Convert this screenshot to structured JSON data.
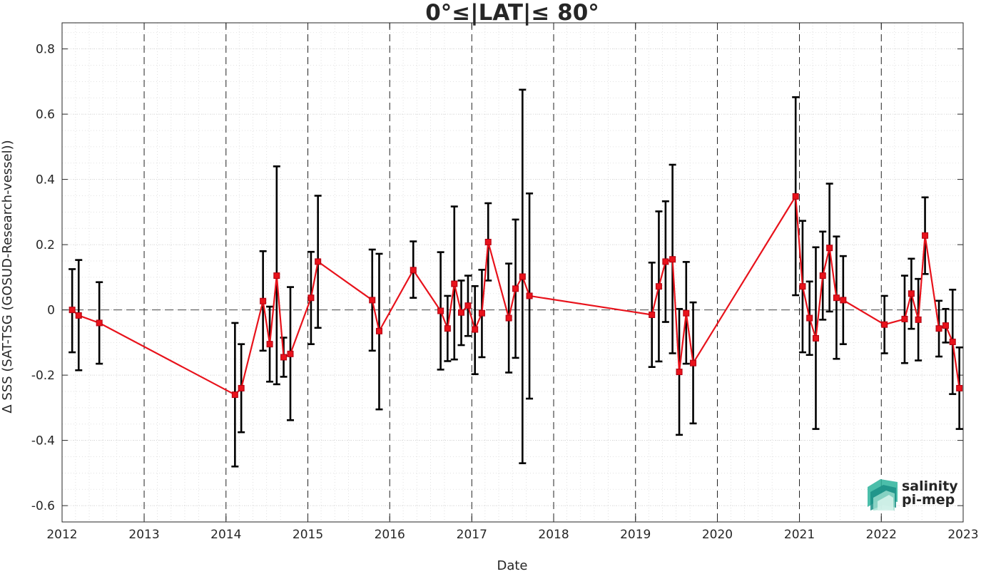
{
  "chart_data": {
    "type": "line",
    "title": "0°≤|LAT|≤ 80°",
    "xlabel": "Date",
    "ylabel": "Δ SSS (SAT-TSG (GOSUD-Research-vessel))",
    "xlim": [
      "2012-01-01",
      "2023-01-01"
    ],
    "ylim": [
      -0.65,
      0.88
    ],
    "x_ticks": [
      "2012",
      "2013",
      "2014",
      "2015",
      "2016",
      "2017",
      "2018",
      "2019",
      "2020",
      "2021",
      "2022",
      "2023"
    ],
    "y_ticks": [
      -0.6,
      -0.4,
      -0.2,
      0,
      0.2,
      0.4,
      0.6,
      0.8
    ],
    "y_tick_labels": [
      "-0.6",
      "-0.4",
      "-0.2",
      "0",
      "0.2",
      "0.4",
      "0.6",
      "0.8"
    ],
    "grid": "minor-dotted",
    "year_separators": "dashed",
    "zero_line": "dashed",
    "line_color": "#e8121b",
    "errorbar_color": "#000000",
    "series": [
      {
        "points": [
          {
            "x": "2012-02-15",
            "y": 0.0,
            "low": -0.13,
            "high": 0.125
          },
          {
            "x": "2012-03-15",
            "y": -0.017,
            "low": -0.185,
            "high": 0.153
          },
          {
            "x": "2012-06-15",
            "y": -0.04,
            "low": -0.165,
            "high": 0.085
          },
          {
            "x": "2014-02-10",
            "y": -0.26,
            "low": -0.48,
            "high": -0.04
          },
          {
            "x": "2014-03-10",
            "y": -0.24,
            "low": -0.375,
            "high": -0.105
          },
          {
            "x": "2014-06-15",
            "y": 0.027,
            "low": -0.125,
            "high": 0.18
          },
          {
            "x": "2014-07-15",
            "y": -0.105,
            "low": -0.22,
            "high": 0.01
          },
          {
            "x": "2014-08-15",
            "y": 0.105,
            "low": -0.228,
            "high": 0.44
          },
          {
            "x": "2014-09-15",
            "y": -0.145,
            "low": -0.205,
            "high": -0.085
          },
          {
            "x": "2014-10-15",
            "y": -0.135,
            "low": -0.338,
            "high": 0.07
          },
          {
            "x": "2015-01-15",
            "y": 0.037,
            "low": -0.105,
            "high": 0.178
          },
          {
            "x": "2015-02-15",
            "y": 0.148,
            "low": -0.055,
            "high": 0.35
          },
          {
            "x": "2015-10-15",
            "y": 0.03,
            "low": -0.125,
            "high": 0.185
          },
          {
            "x": "2015-11-15",
            "y": -0.065,
            "low": -0.305,
            "high": 0.172
          },
          {
            "x": "2016-04-15",
            "y": 0.122,
            "low": 0.037,
            "high": 0.21
          },
          {
            "x": "2016-08-15",
            "y": -0.003,
            "low": -0.183,
            "high": 0.177
          },
          {
            "x": "2016-09-15",
            "y": -0.057,
            "low": -0.157,
            "high": 0.043
          },
          {
            "x": "2016-10-15",
            "y": 0.08,
            "low": -0.152,
            "high": 0.317
          },
          {
            "x": "2016-11-15",
            "y": -0.008,
            "low": -0.108,
            "high": 0.09
          },
          {
            "x": "2016-12-15",
            "y": 0.013,
            "low": -0.08,
            "high": 0.105
          },
          {
            "x": "2017-01-15",
            "y": -0.06,
            "low": -0.197,
            "high": 0.073
          },
          {
            "x": "2017-02-15",
            "y": -0.01,
            "low": -0.145,
            "high": 0.123
          },
          {
            "x": "2017-03-15",
            "y": 0.208,
            "low": 0.09,
            "high": 0.327
          },
          {
            "x": "2017-06-15",
            "y": -0.025,
            "low": -0.192,
            "high": 0.142
          },
          {
            "x": "2017-07-15",
            "y": 0.065,
            "low": -0.147,
            "high": 0.277
          },
          {
            "x": "2017-08-15",
            "y": 0.102,
            "low": -0.47,
            "high": 0.675
          },
          {
            "x": "2017-09-15",
            "y": 0.043,
            "low": -0.272,
            "high": 0.357
          },
          {
            "x": "2019-03-15",
            "y": -0.015,
            "low": -0.175,
            "high": 0.145
          },
          {
            "x": "2019-04-15",
            "y": 0.072,
            "low": -0.158,
            "high": 0.302
          },
          {
            "x": "2019-05-15",
            "y": 0.148,
            "low": -0.037,
            "high": 0.333
          },
          {
            "x": "2019-06-15",
            "y": 0.155,
            "low": -0.133,
            "high": 0.445
          },
          {
            "x": "2019-07-15",
            "y": -0.19,
            "low": -0.383,
            "high": 0.003
          },
          {
            "x": "2019-08-15",
            "y": -0.01,
            "low": -0.165,
            "high": 0.147
          },
          {
            "x": "2019-09-15",
            "y": -0.163,
            "low": -0.348,
            "high": 0.023
          },
          {
            "x": "2020-12-15",
            "y": 0.348,
            "low": 0.045,
            "high": 0.652
          },
          {
            "x": "2021-01-15",
            "y": 0.072,
            "low": -0.13,
            "high": 0.273
          },
          {
            "x": "2021-02-15",
            "y": -0.025,
            "low": -0.138,
            "high": 0.087
          },
          {
            "x": "2021-03-15",
            "y": -0.087,
            "low": -0.365,
            "high": 0.192
          },
          {
            "x": "2021-04-15",
            "y": 0.105,
            "low": -0.03,
            "high": 0.24
          },
          {
            "x": "2021-05-15",
            "y": 0.19,
            "low": -0.005,
            "high": 0.387
          },
          {
            "x": "2021-06-15",
            "y": 0.037,
            "low": -0.15,
            "high": 0.225
          },
          {
            "x": "2021-07-15",
            "y": 0.03,
            "low": -0.105,
            "high": 0.165
          },
          {
            "x": "2022-01-15",
            "y": -0.045,
            "low": -0.133,
            "high": 0.043
          },
          {
            "x": "2022-04-15",
            "y": -0.028,
            "low": -0.163,
            "high": 0.105
          },
          {
            "x": "2022-05-15",
            "y": 0.05,
            "low": -0.058,
            "high": 0.157
          },
          {
            "x": "2022-06-15",
            "y": -0.03,
            "low": -0.155,
            "high": 0.095
          },
          {
            "x": "2022-07-15",
            "y": 0.228,
            "low": 0.11,
            "high": 0.345
          },
          {
            "x": "2022-09-15",
            "y": -0.057,
            "low": -0.143,
            "high": 0.028
          },
          {
            "x": "2022-10-15",
            "y": -0.048,
            "low": -0.1,
            "high": 0.003
          },
          {
            "x": "2022-11-15",
            "y": -0.098,
            "low": -0.258,
            "high": 0.062
          },
          {
            "x": "2022-12-15",
            "y": -0.24,
            "low": -0.365,
            "high": -0.115
          }
        ]
      }
    ]
  },
  "logo": {
    "line1": "salinity",
    "line2": "pi-mep",
    "accent_color": "#1aa58f",
    "dark_color": "#1d5a66"
  }
}
